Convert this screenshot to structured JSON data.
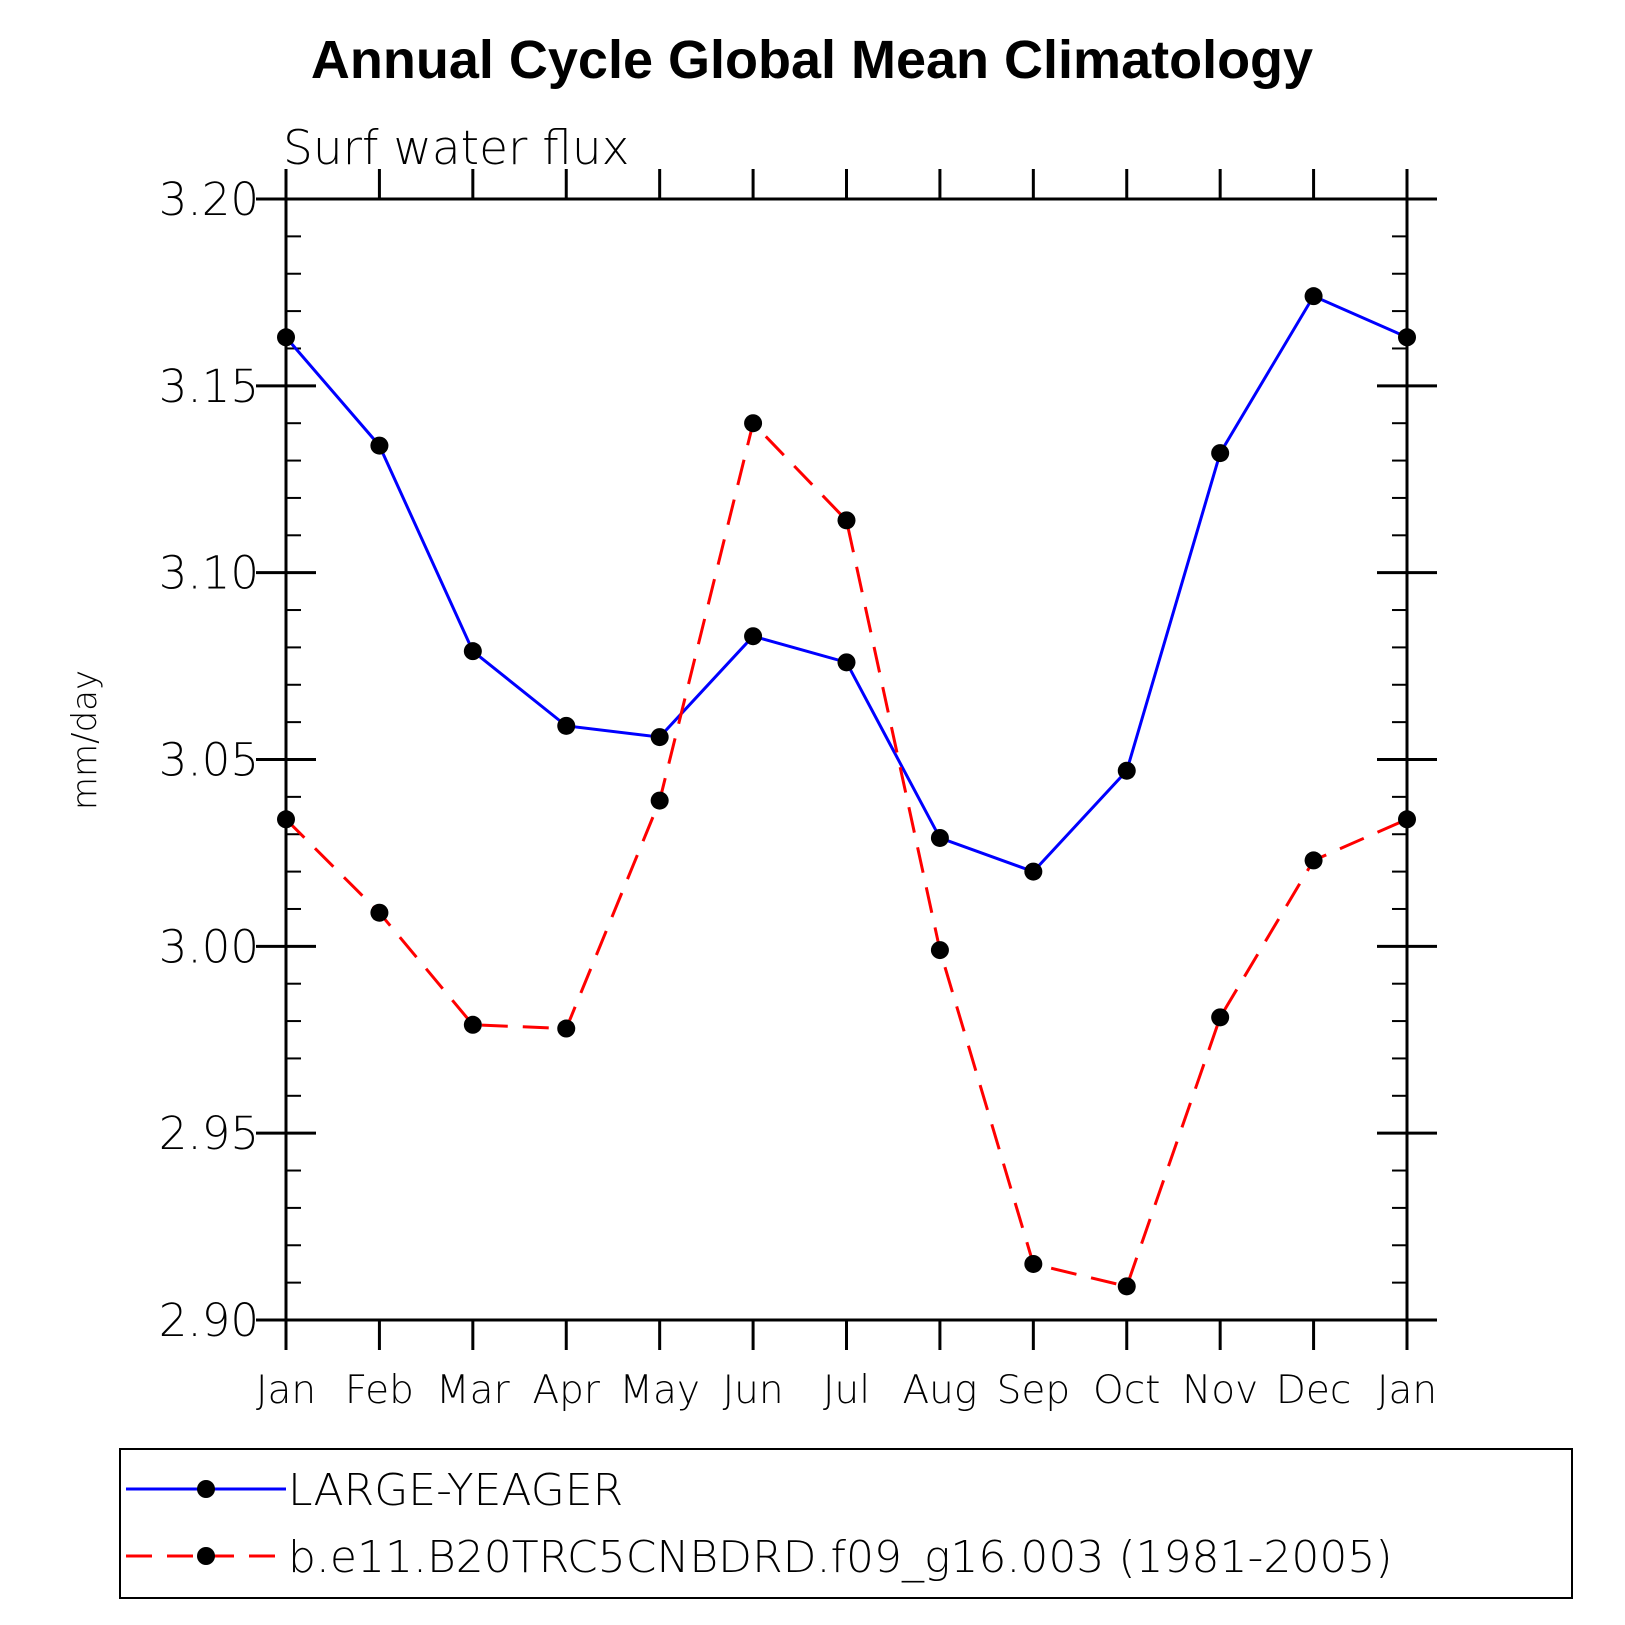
{
  "chart_data": {
    "type": "line",
    "title": "Annual Cycle Global Mean Climatology",
    "subtitle": "Surf water flux",
    "ylabel": "mm/day",
    "xlabel": "",
    "categories": [
      "Jan",
      "Feb",
      "Mar",
      "Apr",
      "May",
      "Jun",
      "Jul",
      "Aug",
      "Sep",
      "Oct",
      "Nov",
      "Dec",
      "Jan"
    ],
    "ylim": [
      2.9,
      3.2
    ],
    "yticks": [
      "3.20",
      "3.15",
      "3.10",
      "3.05",
      "3.00",
      "2.95",
      "2.90"
    ],
    "ytick_values": [
      3.2,
      3.15,
      3.1,
      3.05,
      3.0,
      2.95,
      2.9
    ],
    "grid": false,
    "legend_position": "bottom",
    "series": [
      {
        "name": "LARGE-YEAGER",
        "color": "#0000ff",
        "style": "solid",
        "values": [
          3.163,
          3.134,
          3.079,
          3.059,
          3.056,
          3.083,
          3.076,
          3.029,
          3.02,
          3.047,
          3.132,
          3.174,
          3.163
        ]
      },
      {
        "name": "b.e11.B20TRC5CNBDRD.f09_g16.003 (1981-2005)",
        "color": "#ff0000",
        "style": "dashed",
        "values": [
          3.034,
          3.009,
          2.979,
          2.978,
          3.039,
          3.14,
          3.114,
          2.999,
          2.915,
          2.909,
          2.981,
          3.023,
          3.034
        ]
      }
    ]
  }
}
